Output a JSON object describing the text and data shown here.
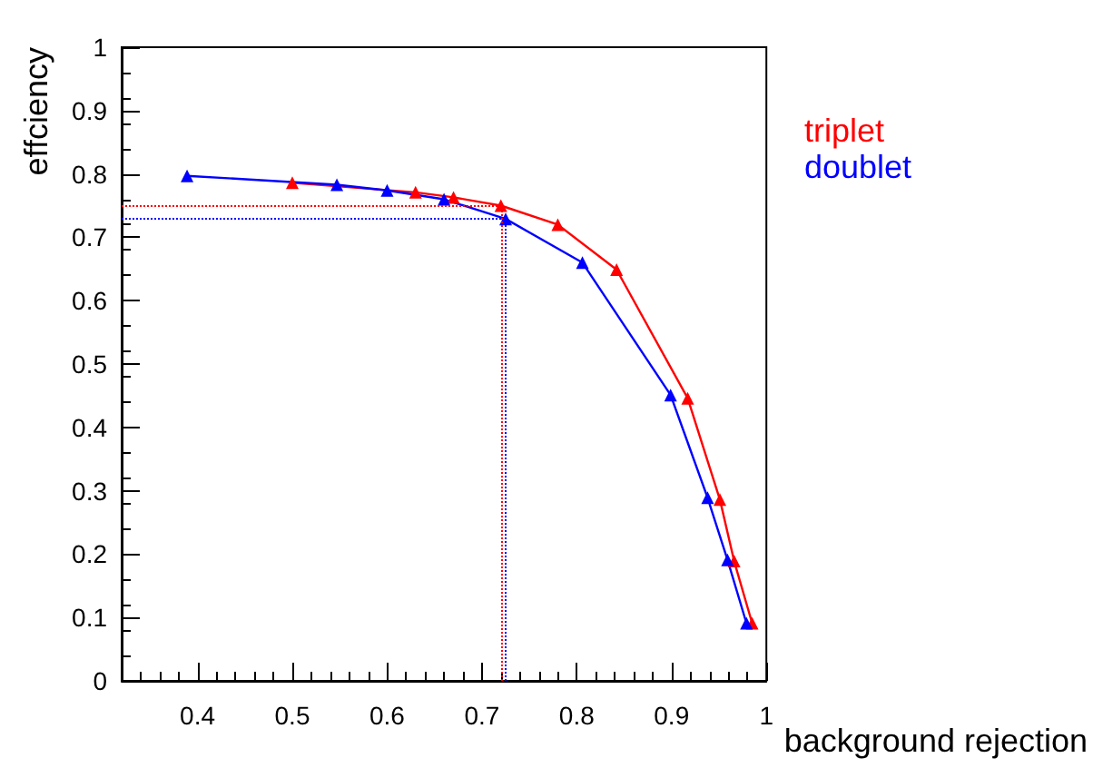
{
  "chart_data": {
    "type": "line",
    "xlabel": "background rejection",
    "ylabel": "effciency",
    "series": [
      {
        "name": "triplet",
        "color": "#ff0000",
        "x": [
          0.5,
          0.63,
          0.67,
          0.72,
          0.78,
          0.842,
          0.917,
          0.951,
          0.966,
          0.985
        ],
        "values": [
          0.786,
          0.771,
          0.763,
          0.75,
          0.72,
          0.649,
          0.446,
          0.286,
          0.189,
          0.091
        ]
      },
      {
        "name": "doublet",
        "color": "#0000ff",
        "x": [
          0.389,
          0.547,
          0.6,
          0.66,
          0.725,
          0.806,
          0.899,
          0.938,
          0.959,
          0.979
        ],
        "values": [
          0.797,
          0.783,
          0.774,
          0.76,
          0.729,
          0.66,
          0.451,
          0.289,
          0.191,
          0.091
        ]
      }
    ],
    "xlim": [
      0.32,
      1
    ],
    "xticks": [
      0.4,
      0.5,
      0.6,
      0.7,
      0.8,
      0.9,
      1
    ],
    "ylim": [
      0,
      1
    ],
    "yticks": [
      0,
      0.1,
      0.2,
      0.3,
      0.4,
      0.5,
      0.6,
      0.7,
      0.8,
      0.9,
      1
    ],
    "ref_lines": [
      {
        "axis": "y",
        "value": 0.75,
        "color": "#ff0000",
        "line_style": "dotted"
      },
      {
        "axis": "x",
        "value": 0.72,
        "color": "#ff0000",
        "line_style": "dotted"
      },
      {
        "axis": "y",
        "value": 0.729,
        "color": "#0000ff",
        "line_style": "dotted"
      },
      {
        "axis": "x",
        "value": 0.725,
        "color": "#0000ff",
        "line_style": "dotted"
      }
    ],
    "grid": false,
    "legend": "top right",
    "marker": "triangle",
    "line_style": "solid"
  }
}
